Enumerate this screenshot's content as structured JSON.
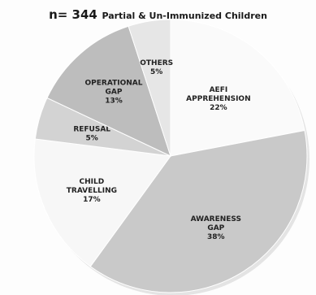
{
  "chart_data": {
    "type": "pie",
    "title_n": "n= 344",
    "title_rest": "Partial & Un-Immunized Children",
    "slices": [
      {
        "label": [
          "AEFI",
          "APPREHENSION"
        ],
        "pct_text": "22%",
        "value": 22,
        "color": "#fafafa"
      },
      {
        "label": [
          "AWARENESS",
          "GAP"
        ],
        "pct_text": "38%",
        "value": 38,
        "color": "#c9c9c9"
      },
      {
        "label": [
          "CHILD",
          "TRAVELLING"
        ],
        "pct_text": "17%",
        "value": 17,
        "color": "#f7f7f7"
      },
      {
        "label": [
          "REFUSAL"
        ],
        "pct_text": "5%",
        "value": 5,
        "color": "#d3d3d3"
      },
      {
        "label": [
          "OPERATIONAL",
          "GAP"
        ],
        "pct_text": "13%",
        "value": 13,
        "color": "#bdbdbd"
      },
      {
        "label": [
          "OTHERS"
        ],
        "pct_text": "5%",
        "value": 5,
        "color": "#e6e6e6"
      }
    ]
  }
}
